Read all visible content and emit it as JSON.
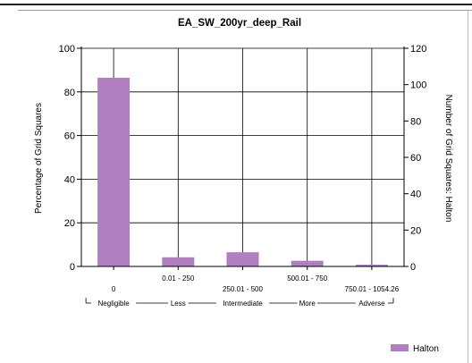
{
  "chart_data": {
    "type": "bar",
    "title": "EA_SW_200yr_deep_Rail",
    "ylabel": "Percentage of Grid Squares",
    "y2label": "Number of Grid Squares: Halton",
    "ylim": [
      0,
      100
    ],
    "y2lim": [
      0,
      120
    ],
    "yticks": [
      "0",
      "20",
      "40",
      "60",
      "80",
      "100"
    ],
    "y2ticks": [
      "0",
      "20",
      "40",
      "60",
      "80",
      "100",
      "120"
    ],
    "categories": [
      "0",
      "0.01 - 250",
      "250.01 - 500",
      "500.01 - 750",
      "750.01 - 1054.26"
    ],
    "series": [
      {
        "name": "Halton",
        "color": "#b07fc0",
        "values": [
          86.5,
          4.2,
          6.5,
          2.6,
          0.8
        ]
      }
    ],
    "bands": [
      "Negligible",
      "Less",
      "Intermediate",
      "More",
      "Adverse"
    ],
    "legend_position": "bottom-right",
    "grid": true
  }
}
